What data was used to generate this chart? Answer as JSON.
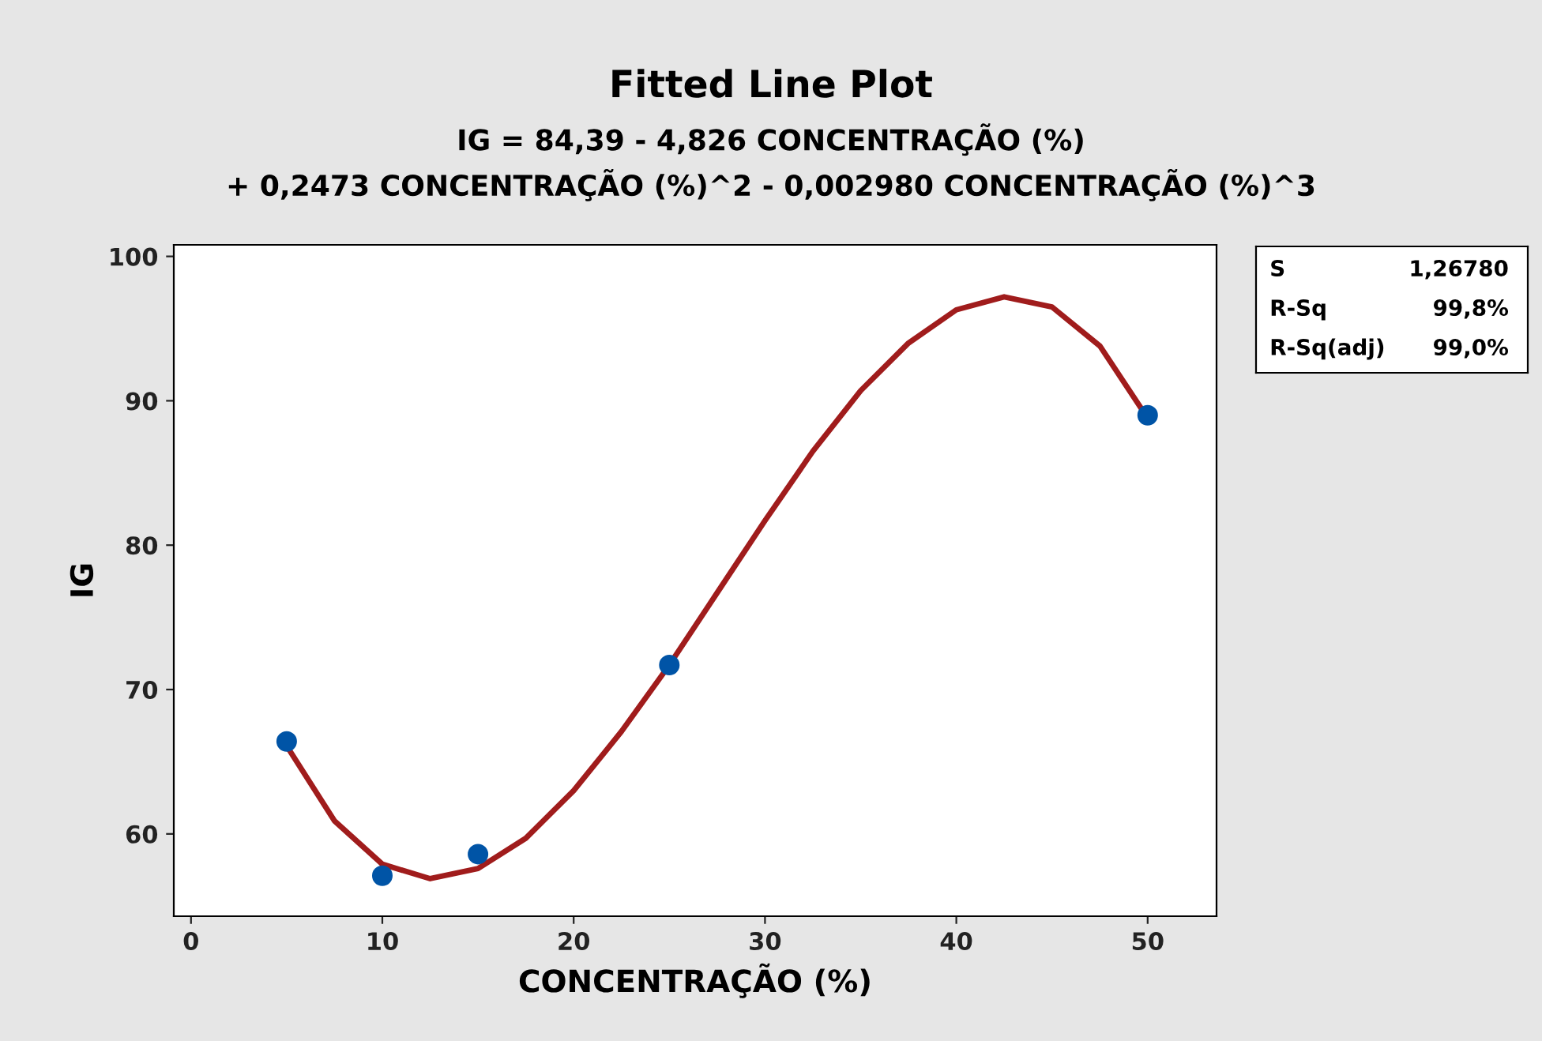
{
  "chart_data": {
    "type": "scatter",
    "title": "Fitted Line Plot",
    "subtitle": "IG = 84,39 - 4,826 CONCENTRAÇÃO (%)\n+ 0,2473 CONCENTRAÇÃO (%)^2 - 0,002980 CONCENTRAÇÃO (%)^3",
    "xlabel": "CONCENTRAÇÃO (%)",
    "ylabel": "IG",
    "series": [
      {
        "color": "#0054a6",
        "marker": "circle",
        "x": [
          5,
          10,
          15,
          25,
          50
        ],
        "values": [
          66.4,
          57.1,
          58.6,
          71.7,
          89.0
        ]
      },
      {
        "type": "line",
        "color": "#a01c1c",
        "marker": "none",
        "line_style": "solid",
        "x": [
          5,
          7.5,
          10,
          12.5,
          15,
          17.5,
          20,
          22.5,
          25,
          27.5,
          30,
          32.5,
          35,
          37.5,
          40,
          42.5,
          45,
          47.5,
          50
        ],
        "values": [
          66.1,
          60.9,
          57.9,
          56.9,
          57.6,
          59.7,
          63.0,
          67.1,
          71.7,
          76.7,
          81.7,
          86.5,
          90.7,
          94.0,
          96.3,
          97.2,
          96.5,
          93.8,
          88.8
        ]
      }
    ],
    "xlim": [
      -0.9,
      53.6
    ],
    "ylim": [
      54.3,
      100.8
    ],
    "xticks": [
      0,
      10,
      20,
      30,
      40,
      50
    ],
    "yticks": [
      60,
      70,
      80,
      90,
      100
    ],
    "grid": false,
    "legend": false,
    "annotations": [
      "S",
      "1,26780",
      "R-Sq",
      "99,8%",
      "R-Sq(adj)",
      "99,0%"
    ]
  }
}
